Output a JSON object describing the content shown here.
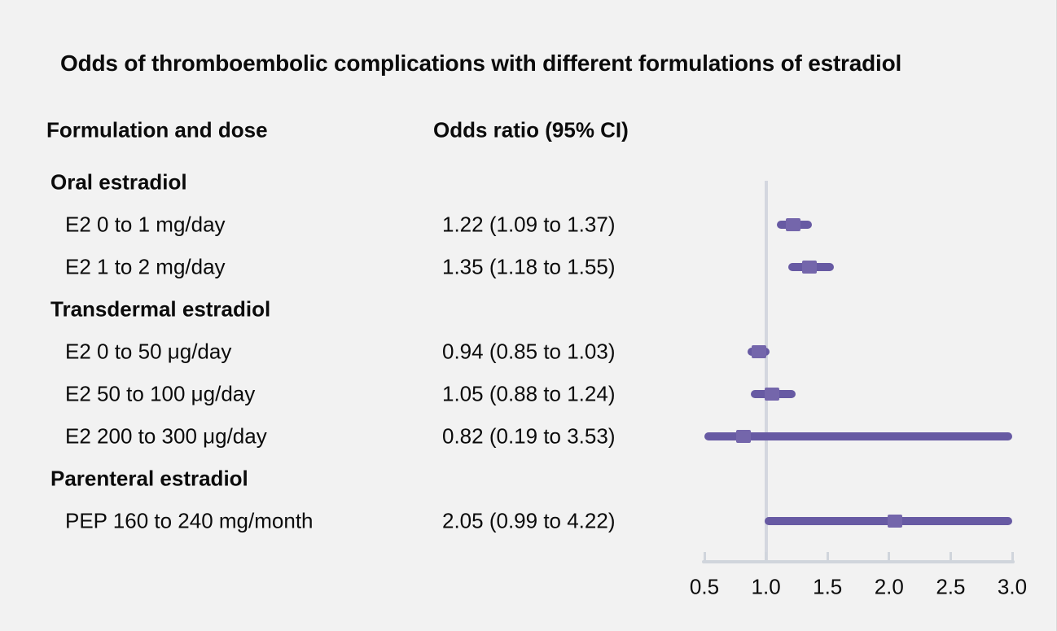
{
  "title": "Odds of thromboembolic complications with different formulations of estradiol",
  "columns": {
    "formulation": "Formulation and dose",
    "odds_ratio": "Odds ratio (95% CI)"
  },
  "rows": [
    {
      "type": "group",
      "label": "Oral estradiol",
      "value": ""
    },
    {
      "type": "item",
      "label": "E2 0 to 1 mg/day",
      "value": "1.22 (1.09 to 1.37)",
      "or": 1.22,
      "lo": 1.09,
      "hi": 1.37
    },
    {
      "type": "item",
      "label": "E2 1 to 2 mg/day",
      "value": "1.35 (1.18 to 1.55)",
      "or": 1.35,
      "lo": 1.18,
      "hi": 1.55
    },
    {
      "type": "group",
      "label": "Transdermal estradiol",
      "value": ""
    },
    {
      "type": "item",
      "label": "E2 0 to 50 μg/day",
      "value": "0.94 (0.85 to 1.03)",
      "or": 0.94,
      "lo": 0.85,
      "hi": 1.03
    },
    {
      "type": "item",
      "label": "E2 50 to 100 μg/day",
      "value": "1.05 (0.88 to 1.24)",
      "or": 1.05,
      "lo": 0.88,
      "hi": 1.24
    },
    {
      "type": "item",
      "label": "E2 200 to 300 μg/day",
      "value": "0.82 (0.19 to 3.53)",
      "or": 0.82,
      "lo": 0.19,
      "hi": 3.53
    },
    {
      "type": "group",
      "label": "Parenteral estradiol",
      "value": ""
    },
    {
      "type": "item",
      "label": "PEP 160 to 240 mg/month",
      "value": "2.05 (0.99 to 4.22)",
      "or": 2.05,
      "lo": 0.99,
      "hi": 4.22
    }
  ],
  "chart_data": {
    "type": "scatter",
    "variant": "forest-plot",
    "title": "Odds of thromboembolic complications with different formulations of estradiol",
    "xlabel": "Odds ratio (95% CI)",
    "xlim": [
      0.5,
      3.0
    ],
    "x_tick_values": [
      0.5,
      1.0,
      1.5,
      2.0,
      2.5,
      3.0
    ],
    "x_tick_labels": [
      "0.5",
      "1.0",
      "1.5",
      "2.0",
      "2.5",
      "3.0"
    ],
    "reference_line_x": 1.0,
    "clipping": "confidence intervals clipped to axis range 0.5–3.0",
    "series": [
      {
        "name": "E2 0 to 1 mg/day",
        "or": 1.22,
        "ci_low": 1.09,
        "ci_high": 1.37
      },
      {
        "name": "E2 1 to 2 mg/day",
        "or": 1.35,
        "ci_low": 1.18,
        "ci_high": 1.55
      },
      {
        "name": "E2 0 to 50 μg/day",
        "or": 0.94,
        "ci_low": 0.85,
        "ci_high": 1.03
      },
      {
        "name": "E2 50 to 100 μg/day",
        "or": 1.05,
        "ci_low": 0.88,
        "ci_high": 1.24
      },
      {
        "name": "E2 200 to 300 μg/day",
        "or": 0.82,
        "ci_low": 0.19,
        "ci_high": 3.53
      },
      {
        "name": "PEP 160 to 240 mg/month",
        "or": 2.05,
        "ci_low": 0.99,
        "ci_high": 4.22
      }
    ]
  },
  "colors": {
    "background": "#f2f2f2",
    "text": "#0b0b0b",
    "ci_line": "#675aa3",
    "marker": "#7466ab",
    "axis": "#d0d5dc",
    "reference_line": "#d4d7df"
  }
}
